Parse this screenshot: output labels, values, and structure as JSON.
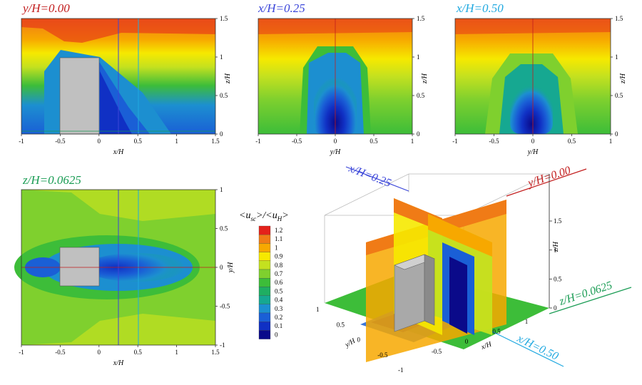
{
  "chart_data": [
    {
      "type": "heatmap",
      "title": "y/H=0.00",
      "title_color": "#c21d1d",
      "xlabel": "x/H",
      "ylabel": "z/H",
      "xlim": [
        -1,
        1.5
      ],
      "ylim": [
        0,
        1.5
      ],
      "xticks": [
        "-1",
        "-0.5",
        "0",
        "0.5",
        "1",
        "1.5"
      ],
      "yticks": [
        "0",
        "0.5",
        "1",
        "1.5"
      ],
      "field": "side-view streamwise velocity contours"
    },
    {
      "type": "heatmap",
      "title": "x/H=0.25",
      "title_color": "#3b46d9",
      "xlabel": "y/H",
      "ylabel": "z/H",
      "xlim": [
        -1,
        1
      ],
      "ylim": [
        0,
        1.5
      ],
      "xticks": [
        "-1",
        "-0.5",
        "0",
        "0.5",
        "1"
      ],
      "yticks": [
        "0",
        "0.5",
        "1",
        "1.5"
      ],
      "field": "cross-section velocity contours"
    },
    {
      "type": "heatmap",
      "title": "x/H=0.50",
      "title_color": "#21a9e0",
      "xlabel": "y/H",
      "ylabel": "z/H",
      "xlim": [
        -1,
        1
      ],
      "ylim": [
        0,
        1.5
      ],
      "xticks": [
        "-1",
        "-0.5",
        "0",
        "0.5",
        "1"
      ],
      "yticks": [
        "0",
        "0.5",
        "1",
        "1.5"
      ],
      "field": "cross-section velocity contours"
    },
    {
      "type": "heatmap",
      "title": "z/H=0.0625",
      "title_color": "#1a9c54",
      "xlabel": "x/H",
      "ylabel": "y/H",
      "xlim": [
        -1,
        1.5
      ],
      "ylim": [
        -1,
        1
      ],
      "xticks": [
        "-1",
        "-0.5",
        "0",
        "0.5",
        "1",
        "1.5"
      ],
      "yticks": [
        "-1",
        "-0.5",
        "0",
        "0.5",
        "1"
      ],
      "field": "plan-view velocity contours"
    }
  ],
  "legend": {
    "title_left": "<u",
    "title_sub1": "sc",
    "title_mid": ">/<u",
    "title_sub2": "H",
    "title_right": ">",
    "levels": [
      {
        "label": "1.2",
        "color": "#e4221b"
      },
      {
        "label": "1.1",
        "color": "#f07b16"
      },
      {
        "label": "1",
        "color": "#f7a800"
      },
      {
        "label": "0.9",
        "color": "#f6e900"
      },
      {
        "label": "0.8",
        "color": "#c4e11f"
      },
      {
        "label": "0.7",
        "color": "#7fd02e"
      },
      {
        "label": "0.6",
        "color": "#3dbd39"
      },
      {
        "label": "0.5",
        "color": "#1fae62"
      },
      {
        "label": "0.4",
        "color": "#16a891"
      },
      {
        "label": "0.3",
        "color": "#1c8fd0"
      },
      {
        "label": "0.2",
        "color": "#1a5fd6"
      },
      {
        "label": "0.1",
        "color": "#1030c4"
      },
      {
        "label": "0",
        "color": "#0a0a8a"
      }
    ]
  },
  "view3d": {
    "labels": [
      {
        "text": "x/H=0.25",
        "color": "#3b46d9"
      },
      {
        "text": "y/H=0.00",
        "color": "#c21d1d"
      },
      {
        "text": "z/H=0.0625",
        "color": "#1a9c54"
      },
      {
        "text": "x/H=0.50",
        "color": "#21a9e0"
      }
    ],
    "z_ticks": [
      "0",
      "0.5",
      "1",
      "1.5"
    ],
    "y_ticks": [
      "-1",
      "-0.5",
      "0",
      "0.5",
      "1"
    ],
    "x_ticks": [
      "-0.5",
      "0",
      "0.5",
      "1"
    ],
    "z_axis": "z/H",
    "y_axis": "y/H",
    "x_axis": "x/H"
  }
}
